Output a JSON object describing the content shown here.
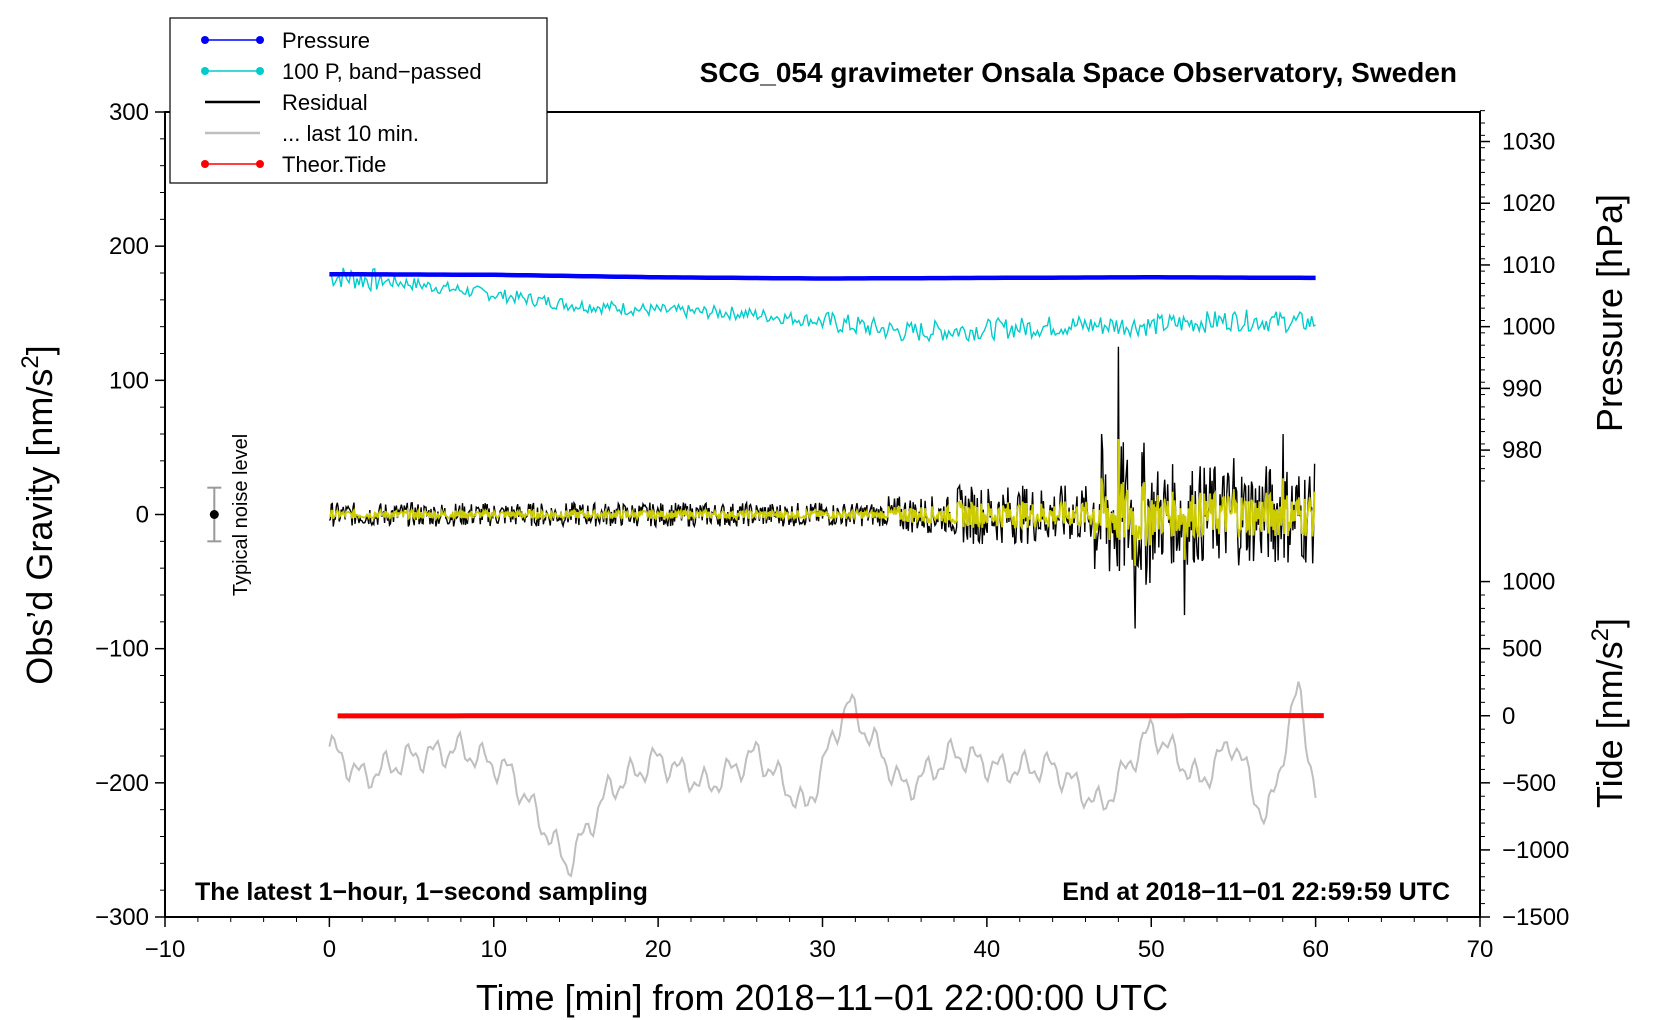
{
  "chart_data": {
    "type": "line",
    "title": "SCG_054 gravimeter Onsala Space Observatory, Sweden",
    "xlabel": "Time [min] from 2018−11−01 22:00:00 UTC",
    "ylabel_left": "Obs’d Gravity [nm/s",
    "ylabel_left_sup": "2",
    "ylabel_left_end": "]",
    "ylabel_right_top": "Pressure [hPa]",
    "ylabel_right_bottom": "Tide [nm/s",
    "ylabel_right_bottom_sup": "2",
    "ylabel_right_bottom_end": "]",
    "xlim": [
      -10,
      70
    ],
    "ylim": [
      -300,
      300
    ],
    "x_ticks": [
      -10,
      0,
      10,
      20,
      30,
      40,
      50,
      60,
      70
    ],
    "x_tick_labels": [
      "−10",
      "0",
      "10",
      "20",
      "30",
      "40",
      "50",
      "60",
      "70"
    ],
    "y_ticks": [
      -300,
      -200,
      -100,
      0,
      100,
      200,
      300
    ],
    "y_tick_labels": [
      "−300",
      "−200",
      "−100",
      "0",
      "100",
      "200",
      "300"
    ],
    "pressure_axis": {
      "ticks": [
        980,
        990,
        1000,
        1010,
        1020,
        1030
      ],
      "tick_labels": [
        "980",
        "990",
        "1000",
        "1010",
        "1020",
        "1030"
      ],
      "gravity_at_1000": 140,
      "gravity_per_hpa": 4.6
    },
    "tide_axis": {
      "ticks": [
        -1500,
        -1000,
        -500,
        0,
        500,
        1000
      ],
      "tick_labels": [
        "−1500",
        "−1000",
        "−500",
        "0",
        "500",
        "1000"
      ],
      "gravity_at_0": -150,
      "gravity_per_unit": 0.1
    },
    "series": [
      {
        "name": "Pressure",
        "color": "#0000ff",
        "unit": "hPa",
        "x": [
          0,
          10,
          20,
          30,
          40,
          50,
          60
        ],
        "values": [
          1008.5,
          1008.4,
          1008.0,
          1007.8,
          1007.9,
          1008.0,
          1007.9
        ]
      },
      {
        "name": "100 P, band−passed",
        "color": "#00cccc",
        "unit": "nm/s2",
        "x": [
          0,
          5,
          10,
          15,
          20,
          25,
          30,
          35,
          40,
          45,
          50,
          55,
          60
        ],
        "values": [
          178,
          172,
          164,
          156,
          152,
          150,
          144,
          136,
          138,
          141,
          141,
          145,
          143
        ]
      },
      {
        "name": "Residual",
        "color": "#000000",
        "unit": "nm/s2",
        "x": [
          0,
          10,
          20,
          30,
          34,
          38,
          42,
          46,
          47,
          48,
          49,
          52,
          55,
          58,
          60
        ],
        "values": [
          0,
          0,
          0,
          0,
          0,
          0,
          0,
          0,
          60,
          125,
          -85,
          -75,
          42,
          60,
          -37
        ]
      },
      {
        "name": "... last 10 min.",
        "color": "#bfbfbf",
        "unit": "nm/s2",
        "x": [
          0,
          2,
          5,
          8,
          11,
          14.5,
          17,
          20,
          23,
          26,
          29,
          31.5,
          35,
          38,
          41,
          44,
          47,
          50,
          53,
          55,
          57,
          59,
          60
        ],
        "values": [
          -173,
          -196,
          -181,
          -175,
          -192,
          -262,
          -205,
          -182,
          -203,
          -178,
          -220,
          -140,
          -205,
          -178,
          -190,
          -188,
          -218,
          -160,
          -200,
          -168,
          -230,
          -127,
          -213
        ]
      },
      {
        "name": "Theor.Tide",
        "color": "#ff0000",
        "unit": "nm/s2",
        "x": [
          0,
          60
        ],
        "values": [
          -1,
          1
        ]
      }
    ],
    "noise_bar": {
      "label": "Typical noise level",
      "x": -7,
      "center": 0,
      "half_range": 20
    },
    "annotation_left": "The latest 1−hour, 1−second sampling",
    "annotation_right": "End at 2018−11−01 22:59:59 UTC",
    "legend_position": "top-left",
    "grid": false
  }
}
